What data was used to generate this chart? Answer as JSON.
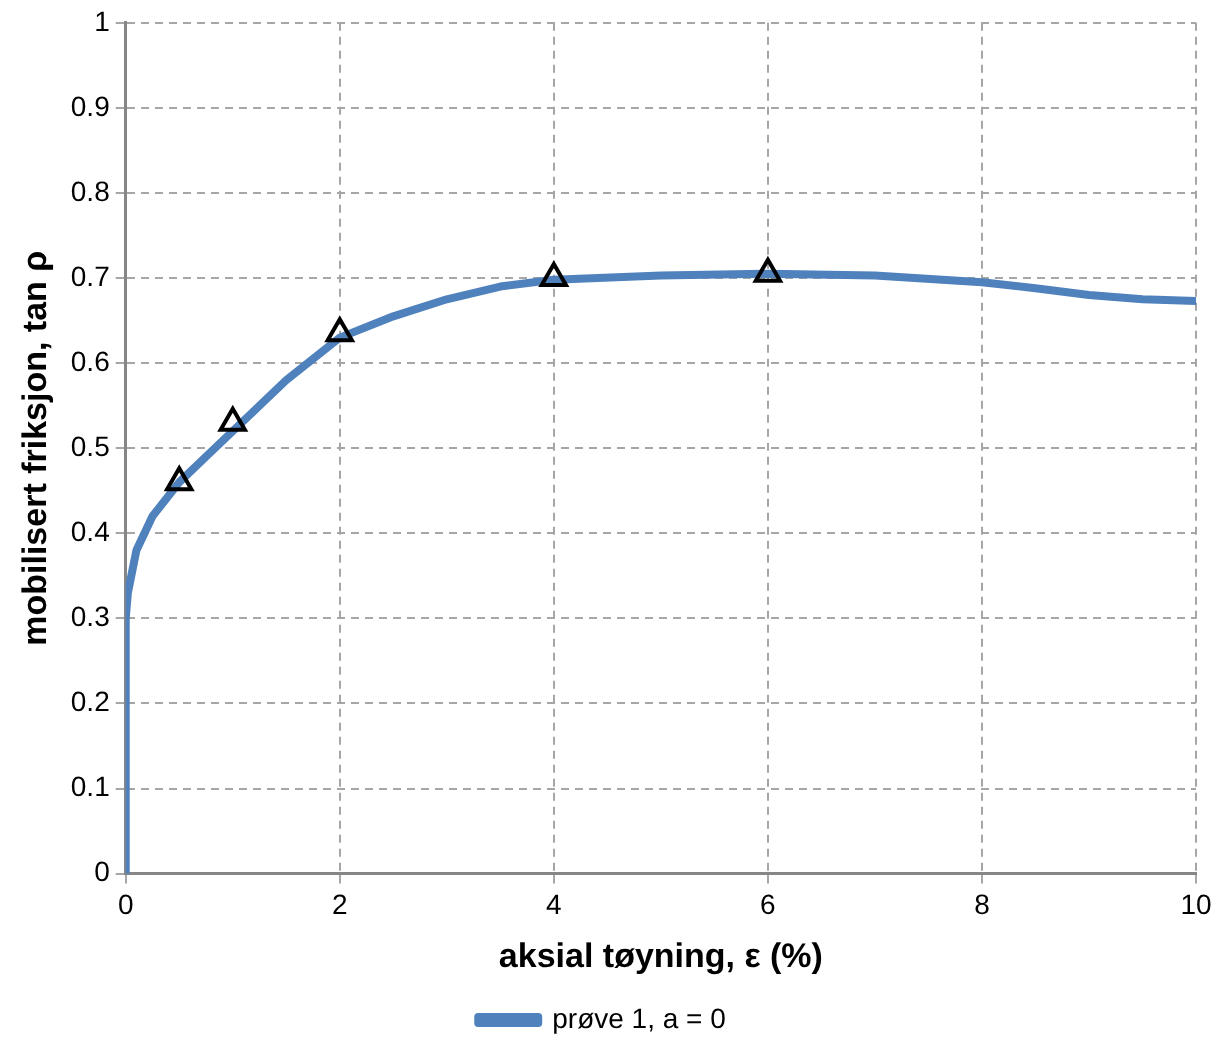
{
  "chart_data": {
    "type": "line",
    "xlabel": "aksial tøyning, ε (%)",
    "ylabel": "mobilisert friksjon, tan ρ",
    "xlim": [
      0,
      10
    ],
    "xticks": [
      0,
      2,
      4,
      6,
      8,
      10
    ],
    "ylim": [
      0,
      1
    ],
    "yticks": [
      0,
      0.1,
      0.2,
      0.3,
      0.4,
      0.5,
      0.6,
      0.7,
      0.8,
      0.9,
      1
    ],
    "grid": true,
    "legend": "bottom",
    "line_style": "solid",
    "series": [
      {
        "name": "prøve 1, a = 0",
        "type": "line",
        "marker": "none",
        "color": "#4f81bd",
        "x": [
          0,
          0,
          0.02,
          0.1,
          0.25,
          0.5,
          0.75,
          1,
          1.25,
          1.5,
          2,
          2.5,
          3,
          3.5,
          4,
          5,
          6,
          7,
          8,
          8.5,
          9,
          9.5,
          10
        ],
        "values": [
          0,
          0.3,
          0.33,
          0.38,
          0.42,
          0.46,
          0.49,
          0.52,
          0.55,
          0.58,
          0.63,
          0.655,
          0.675,
          0.69,
          0.698,
          0.703,
          0.705,
          0.703,
          0.695,
          0.688,
          0.68,
          0.675,
          0.673
        ]
      },
      {
        "type": "scatter",
        "marker": "triangle",
        "color": "#000000",
        "x": [
          0.5,
          1,
          2,
          4,
          6
        ],
        "values": [
          0.46,
          0.53,
          0.635,
          0.7,
          0.705
        ]
      }
    ]
  }
}
